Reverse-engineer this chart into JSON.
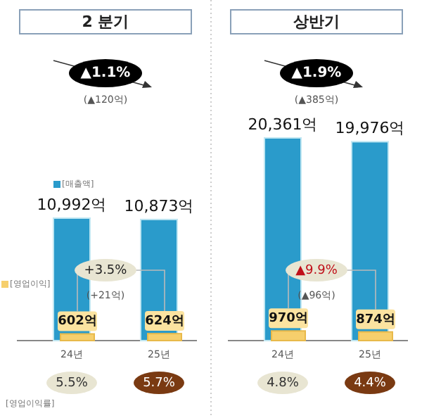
{
  "chart_data": [
    {
      "type": "bar",
      "title": "2 분기",
      "categories": [
        "24년",
        "25년"
      ],
      "legend": "left",
      "series": [
        {
          "name": "[매출액]",
          "color": "#2a9bcb",
          "values": [
            10992,
            10873
          ],
          "value_labels": [
            "10,992억",
            "10,873억"
          ]
        },
        {
          "name": "[영업이익]",
          "color": "#f6cf6c",
          "values": [
            602,
            624
          ],
          "value_labels": [
            "602억",
            "624억"
          ]
        }
      ],
      "annotations": [
        "▲1.1%",
        "(▲120억)",
        "+3.5%",
        "(+21억)",
        "5.5%",
        "5.7%",
        "[영업이익률]"
      ]
    },
    {
      "type": "bar",
      "title": "상반기",
      "categories": [
        "24년",
        "25년"
      ],
      "series": [
        {
          "color": "#2a9bcb",
          "values": [
            20361,
            19976
          ],
          "value_labels": [
            "20,361억",
            "19,976억"
          ]
        },
        {
          "color": "#f6cf6c",
          "values": [
            970,
            874
          ],
          "value_labels": [
            "970억",
            "874억"
          ]
        }
      ],
      "annotations": [
        "▲1.9%",
        "(▲385억)",
        "▲9.9%",
        "(▲96억)",
        "4.8%",
        "4.4%"
      ]
    }
  ]
}
